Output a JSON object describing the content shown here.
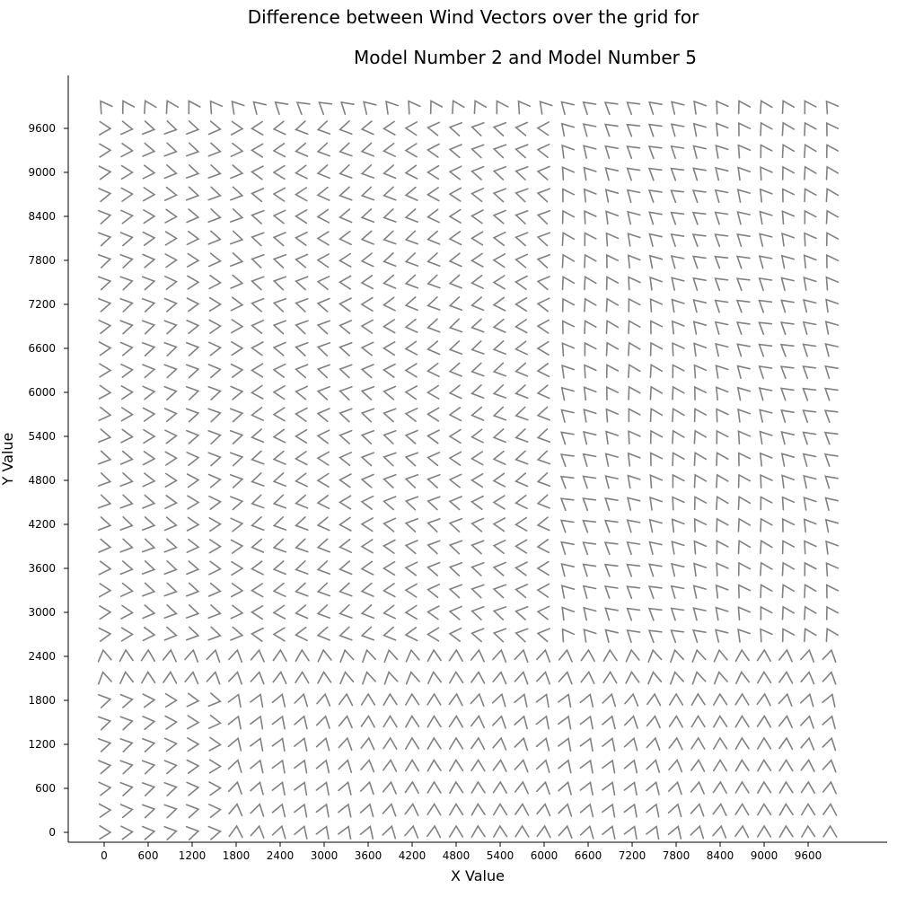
{
  "chart_data": {
    "type": "quiver",
    "title": [
      "Difference between Wind Vectors over the grid for",
      "Model Number 2 and Model Number 5"
    ],
    "xlabel": "X Value",
    "ylabel": "Y Value",
    "xlim": [
      -600,
      10600
    ],
    "ylim": [
      -150,
      10050
    ],
    "xticks": [
      0,
      600,
      1200,
      1800,
      2400,
      3000,
      3600,
      4200,
      4800,
      5400,
      6000,
      6600,
      7200,
      7800,
      8400,
      9000,
      9600
    ],
    "yticks": [
      0,
      600,
      1200,
      1800,
      2400,
      3000,
      3600,
      4200,
      4800,
      5400,
      6000,
      6600,
      7200,
      7800,
      8400,
      9000,
      9600
    ],
    "grid": false,
    "grid_points": {
      "x_start": 0,
      "x_step": 300,
      "x_count": 34,
      "y_start": 0,
      "y_step": 300,
      "y_count": 34
    },
    "glyph_color": "#808080",
    "regions": [
      {
        "name": "lower-left",
        "x_range": [
          0,
          1500
        ],
        "y_range": [
          0,
          2100
        ],
        "direction_deg": 0
      },
      {
        "name": "lower-band",
        "x_range": [
          0,
          9900
        ],
        "y_range": [
          2100,
          2700
        ],
        "direction_deg": 90
      },
      {
        "name": "lower-right",
        "x_range": [
          1500,
          9900
        ],
        "y_range": [
          0,
          2100
        ],
        "direction_deg": 80
      },
      {
        "name": "upper-left",
        "x_range": [
          0,
          1800
        ],
        "y_range": [
          2700,
          9900
        ],
        "direction_deg": 0
      },
      {
        "name": "upper-middle",
        "x_range": [
          1800,
          6000
        ],
        "y_range": [
          2700,
          9900
        ],
        "direction_deg": 180
      },
      {
        "name": "upper-right",
        "x_range": [
          6000,
          9900
        ],
        "y_range": [
          2700,
          9900
        ],
        "direction_deg": 130
      }
    ]
  }
}
